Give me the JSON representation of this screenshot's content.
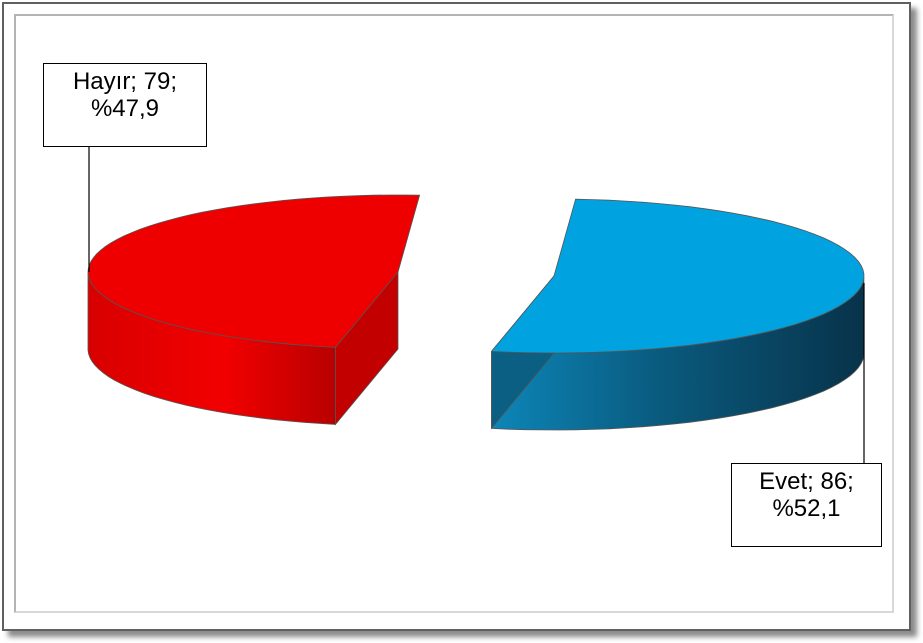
{
  "chart_data": {
    "type": "pie",
    "style": "3d-exploded",
    "slices": [
      {
        "category": "Evet",
        "value": 86,
        "percent": "%52,1",
        "color": "#00a2e0",
        "side_color": "#0a5f82"
      },
      {
        "category": "Hayır",
        "value": 79,
        "percent": "%47,9",
        "color": "#ee0000",
        "side_color": "#c20000"
      }
    ],
    "labels": {
      "evet": {
        "line1": "Evet; 86;",
        "line2": "%52,1"
      },
      "hayir": {
        "line1": "Hayır; 79;",
        "line2": "%47,9"
      }
    },
    "legend": "none"
  }
}
